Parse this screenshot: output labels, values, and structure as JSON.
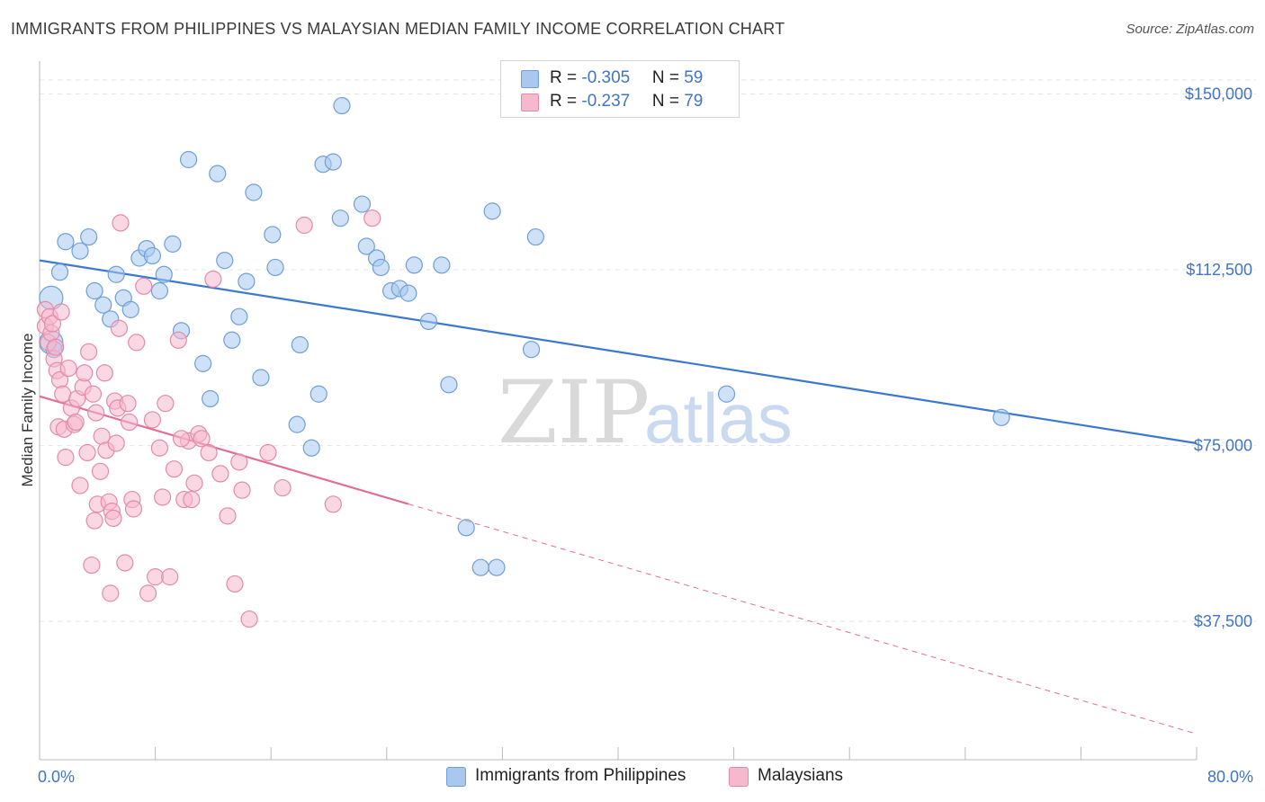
{
  "title": "IMMIGRANTS FROM PHILIPPINES VS MALAYSIAN MEDIAN FAMILY INCOME CORRELATION CHART",
  "source": "Source: ZipAtlas.com",
  "watermark": {
    "zip": "ZIP",
    "atlas": "atlas"
  },
  "legend": {
    "rows": [
      {
        "r_label": "R = ",
        "r_value": "-0.305",
        "n_label": "N = ",
        "n_value": "59",
        "color": "#a8c8f0"
      },
      {
        "r_label": "R = ",
        "r_value": "-0.237",
        "n_label": "N = ",
        "n_value": "79",
        "color": "#f6b8cc"
      }
    ]
  },
  "colors": {
    "blue_fill": "#a8c8f0",
    "blue_stroke": "#6f9fd8",
    "blue_line": "#3b78d0",
    "pink_fill": "#f6b8cc",
    "pink_stroke": "#e48aa8",
    "pink_line": "#e36d95",
    "grid": "#e4e4e4",
    "axis_text": "#3f75c4"
  },
  "chart_data": {
    "type": "scatter",
    "xlabel": "",
    "ylabel": "Median Family Income",
    "x_tick_labels": [
      "0.0%",
      "80.0%"
    ],
    "y_tick_labels": [
      "$37,500",
      "$75,000",
      "$112,500",
      "$150,000"
    ],
    "y_ticks": [
      37500,
      75000,
      112500,
      150000
    ],
    "xlim": [
      0,
      80
    ],
    "ylim": [
      8000,
      157000
    ],
    "grid": true,
    "series": [
      {
        "name": "Immigrants from Philippines",
        "color": "#a8c8f0",
        "trend": {
          "x": [
            0,
            80
          ],
          "y": [
            114500,
            75500
          ],
          "dashed_from": null
        },
        "points": [
          [
            0.8,
            106500,
            2
          ],
          [
            0.8,
            97000,
            2
          ],
          [
            1.4,
            112000,
            1
          ],
          [
            1.8,
            118500,
            1
          ],
          [
            2.8,
            116500,
            1
          ],
          [
            3.4,
            119500,
            1
          ],
          [
            3.8,
            108000,
            1
          ],
          [
            4.4,
            105000,
            1
          ],
          [
            4.9,
            102000,
            1
          ],
          [
            5.3,
            111500,
            1
          ],
          [
            5.8,
            106500,
            1
          ],
          [
            6.3,
            104000,
            1
          ],
          [
            6.9,
            115000,
            1
          ],
          [
            7.4,
            117000,
            1
          ],
          [
            7.8,
            115500,
            1
          ],
          [
            8.3,
            108000,
            1
          ],
          [
            8.6,
            111500,
            1
          ],
          [
            9.2,
            118000,
            1
          ],
          [
            9.8,
            99500,
            1
          ],
          [
            10.3,
            136000,
            1
          ],
          [
            11.3,
            92500,
            1
          ],
          [
            11.8,
            85000,
            1
          ],
          [
            12.3,
            133000,
            1
          ],
          [
            12.8,
            114500,
            1
          ],
          [
            13.3,
            97500,
            1
          ],
          [
            13.8,
            102500,
            1
          ],
          [
            14.3,
            110000,
            1
          ],
          [
            14.8,
            129000,
            1
          ],
          [
            15.3,
            89500,
            1
          ],
          [
            16.1,
            120000,
            1
          ],
          [
            16.3,
            113000,
            1
          ],
          [
            17.8,
            79500,
            1
          ],
          [
            18.0,
            96500,
            1
          ],
          [
            18.8,
            74500,
            1
          ],
          [
            19.3,
            86000,
            1
          ],
          [
            19.6,
            135000,
            1
          ],
          [
            20.3,
            135500,
            1
          ],
          [
            20.8,
            123500,
            1
          ],
          [
            20.9,
            147500,
            1
          ],
          [
            22.3,
            126500,
            1
          ],
          [
            22.6,
            117500,
            1
          ],
          [
            23.3,
            115000,
            1
          ],
          [
            23.6,
            113000,
            1
          ],
          [
            24.3,
            108000,
            1
          ],
          [
            24.9,
            108500,
            1
          ],
          [
            25.5,
            107500,
            1
          ],
          [
            25.9,
            113500,
            1
          ],
          [
            26.9,
            101500,
            1
          ],
          [
            27.8,
            113500,
            1
          ],
          [
            28.3,
            88000,
            1
          ],
          [
            29.5,
            57500,
            1
          ],
          [
            30.5,
            49000,
            1
          ],
          [
            31.3,
            125000,
            1
          ],
          [
            31.6,
            49000,
            1
          ],
          [
            34.0,
            95500,
            1
          ],
          [
            34.3,
            119500,
            1
          ],
          [
            1.0,
            95500,
            1
          ],
          [
            47.5,
            86000,
            1
          ],
          [
            66.5,
            81000,
            1
          ]
        ]
      },
      {
        "name": "Malaysians",
        "color": "#f6b8cc",
        "trend": {
          "x": [
            0,
            80
          ],
          "y": [
            85500,
            13500
          ],
          "dashed_from": 25.5
        },
        "points": [
          [
            0.4,
            104000,
            1
          ],
          [
            0.4,
            100500,
            1
          ],
          [
            0.6,
            97000,
            1
          ],
          [
            0.7,
            102500,
            1
          ],
          [
            0.8,
            99000,
            1
          ],
          [
            0.9,
            101000,
            1
          ],
          [
            1.0,
            93500,
            1
          ],
          [
            1.1,
            96000,
            1
          ],
          [
            1.2,
            91000,
            1
          ],
          [
            1.3,
            79000,
            1
          ],
          [
            1.4,
            89000,
            1
          ],
          [
            1.5,
            103500,
            1
          ],
          [
            1.6,
            86000,
            1
          ],
          [
            1.7,
            78500,
            1
          ],
          [
            1.8,
            72500,
            1
          ],
          [
            2.0,
            91500,
            1
          ],
          [
            2.2,
            83000,
            1
          ],
          [
            2.4,
            79500,
            1
          ],
          [
            2.6,
            85000,
            1
          ],
          [
            2.8,
            66500,
            1
          ],
          [
            3.0,
            87500,
            1
          ],
          [
            3.1,
            90500,
            1
          ],
          [
            3.3,
            73500,
            1
          ],
          [
            3.4,
            95000,
            1
          ],
          [
            3.6,
            49500,
            1
          ],
          [
            3.7,
            86000,
            1
          ],
          [
            3.8,
            59000,
            1
          ],
          [
            3.9,
            82000,
            1
          ],
          [
            4.0,
            62500,
            1
          ],
          [
            4.2,
            69500,
            1
          ],
          [
            4.3,
            77000,
            1
          ],
          [
            4.5,
            90500,
            1
          ],
          [
            4.6,
            74000,
            1
          ],
          [
            4.8,
            63000,
            1
          ],
          [
            4.9,
            43500,
            1
          ],
          [
            5.0,
            61000,
            1
          ],
          [
            5.1,
            59500,
            1
          ],
          [
            5.2,
            84500,
            1
          ],
          [
            5.3,
            75500,
            1
          ],
          [
            5.4,
            83000,
            1
          ],
          [
            5.5,
            100000,
            1
          ],
          [
            5.6,
            122500,
            1
          ],
          [
            5.9,
            50000,
            1
          ],
          [
            6.1,
            84000,
            1
          ],
          [
            6.2,
            80000,
            1
          ],
          [
            6.4,
            63500,
            1
          ],
          [
            6.7,
            97000,
            1
          ],
          [
            7.2,
            109000,
            1
          ],
          [
            7.5,
            43500,
            1
          ],
          [
            7.8,
            80500,
            1
          ],
          [
            8.0,
            47000,
            1
          ],
          [
            8.3,
            74500,
            1
          ],
          [
            8.5,
            64000,
            1
          ],
          [
            8.7,
            84000,
            1
          ],
          [
            9.0,
            47000,
            1
          ],
          [
            9.3,
            70000,
            1
          ],
          [
            9.6,
            97500,
            1
          ],
          [
            10.0,
            63500,
            1
          ],
          [
            10.3,
            76000,
            1
          ],
          [
            10.5,
            63500,
            1
          ],
          [
            10.7,
            67000,
            1
          ],
          [
            11.0,
            77500,
            1
          ],
          [
            11.2,
            76500,
            1
          ],
          [
            11.7,
            73500,
            1
          ],
          [
            12.0,
            110500,
            1
          ],
          [
            13.0,
            60000,
            1
          ],
          [
            13.5,
            45500,
            1
          ],
          [
            13.8,
            71500,
            1
          ],
          [
            14.0,
            65500,
            1
          ],
          [
            14.5,
            38000,
            1
          ],
          [
            15.8,
            73500,
            1
          ],
          [
            16.8,
            66000,
            1
          ],
          [
            18.3,
            122000,
            1
          ],
          [
            20.3,
            62500,
            1
          ],
          [
            23.0,
            123500,
            1
          ],
          [
            2.5,
            80000,
            1
          ],
          [
            6.5,
            61500,
            1
          ],
          [
            9.8,
            76500,
            1
          ],
          [
            12.5,
            69000,
            1
          ]
        ]
      }
    ]
  }
}
